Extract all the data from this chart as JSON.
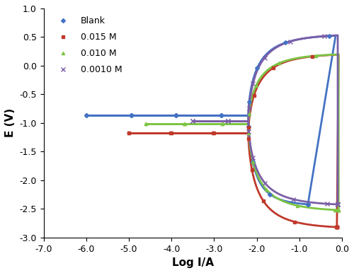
{
  "title": "",
  "xlabel": "Log I/A",
  "ylabel": "E (V)",
  "xlim": [
    -7.0,
    0.0
  ],
  "ylim": [
    -3.0,
    1.0
  ],
  "xticks": [
    -7,
    -6,
    -5,
    -4,
    -3,
    -2,
    -1,
    0
  ],
  "yticks": [
    -3.0,
    -2.5,
    -2.0,
    -1.5,
    -1.0,
    -0.5,
    0.0,
    0.5,
    1.0
  ],
  "series": [
    {
      "label": "Blank",
      "color": "#4472C4",
      "marker": "D",
      "markersize": 3,
      "linewidth": 2.0
    },
    {
      "label": "0.015 M",
      "color": "#C0392B",
      "marker": "s",
      "markersize": 3,
      "linewidth": 2.0
    },
    {
      "label": "0.010 M",
      "color": "#7DC544",
      "marker": "^",
      "markersize": 3,
      "linewidth": 2.0
    },
    {
      "label": "0.0010 M",
      "color": "#7B5EA7",
      "marker": "x",
      "markersize": 4,
      "linewidth": 2.0
    }
  ],
  "background_color": "#FFFFFF",
  "legend_loc": "upper left",
  "legend_fontsize": 9,
  "axis_fontsize": 11,
  "tick_fontsize": 9,
  "curves": {
    "blank": {
      "E_corr": -0.87,
      "log_I_corr": -6.0,
      "log_I_start": -6.0,
      "log_I_flat_end": -2.0,
      "E_an_max": 0.55,
      "E_cat_min": -2.45,
      "log_I_an_end": -0.15,
      "log_I_cat_end": -0.8,
      "ba": 0.22,
      "bc": 0.28
    },
    "c015": {
      "E_corr": -1.18,
      "log_I_corr": -5.0,
      "log_I_flat_end": -2.0,
      "E_an_max": 0.22,
      "E_cat_min": -2.85,
      "log_I_an_end": -0.08,
      "log_I_cat_end": -0.12,
      "ba": 0.25,
      "bc": 0.26
    },
    "c010": {
      "E_corr": -1.02,
      "log_I_corr": -4.6,
      "log_I_flat_end": -2.0,
      "E_an_max": 0.22,
      "E_cat_min": -2.55,
      "log_I_an_end": -0.08,
      "log_I_cat_end": -0.08,
      "ba": 0.25,
      "bc": 0.26
    },
    "c0010": {
      "E_corr": -0.97,
      "log_I_corr": -3.5,
      "log_I_flat_end": -2.0,
      "E_an_max": 0.56,
      "E_cat_min": -2.45,
      "log_I_an_end": -0.1,
      "log_I_cat_end": -0.1,
      "ba": 0.28,
      "bc": 0.26
    }
  }
}
